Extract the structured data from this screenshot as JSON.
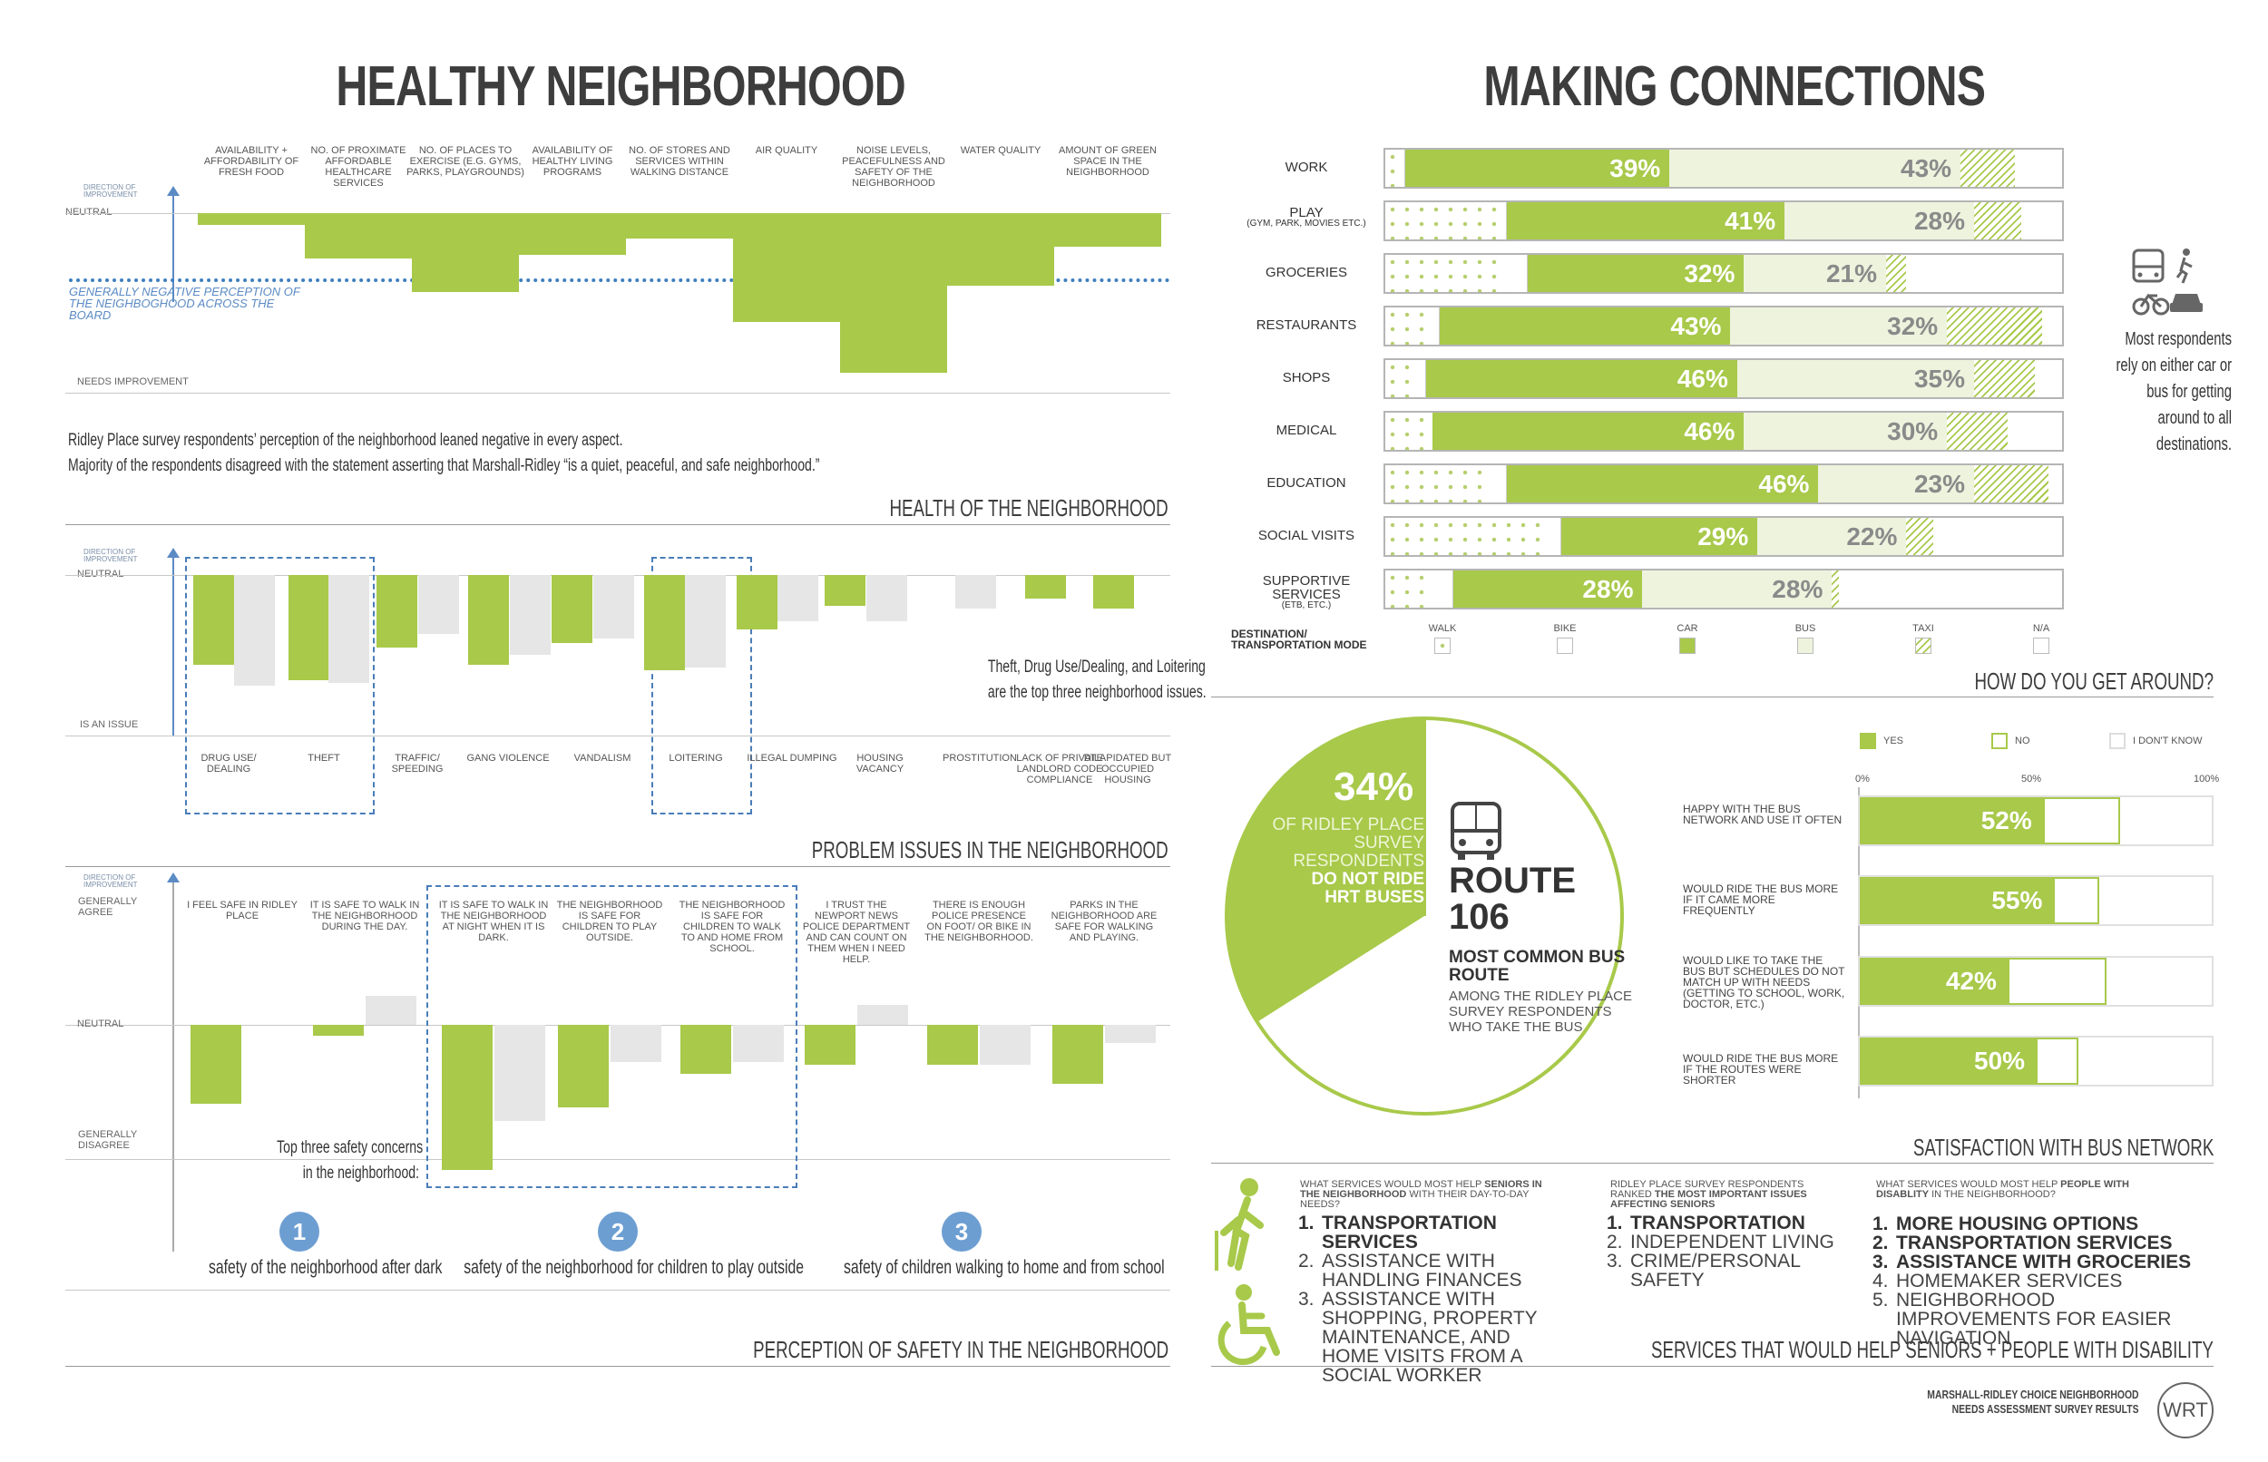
{
  "titles": {
    "left": "HEALTHY NEIGHBORHOOD",
    "right": "MAKING CONNECTIONS"
  },
  "health": {
    "direction": "DIRECTION OF IMPROVEMENT",
    "neutral": "NEUTRAL",
    "needs": "NEEDS IMPROVEMENT",
    "board": "GENERALLY NEGATIVE PERCEPTION OF THE NEIGHBOGHOOD ACROSS THE BOARD",
    "note1": "Ridley Place survey respondents’ perception of the neighborhood leaned negative in every aspect.",
    "note2": "Majority of the respondents disagreed with the statement asserting that Marshall-Ridley “is a quiet, peaceful, and safe neighborhood.”",
    "section": "HEALTH OF THE NEIGHBORHOOD"
  },
  "problems": {
    "direction": "DIRECTION OF IMPROVEMENT",
    "neutral": "NEUTRAL",
    "issue": "IS AN ISSUE",
    "note1": "Theft, Drug Use/Dealing, and Loitering",
    "note2": "are the top three neighborhood issues.",
    "section": "PROBLEM ISSUES IN THE NEIGHBORHOOD"
  },
  "safety": {
    "direction": "DIRECTION OF IMPROVEMENT",
    "agree": "GENERALLY AGREE",
    "neutral": "NEUTRAL",
    "disagree": "GENERALLY DISAGREE",
    "top1": "Top three safety concerns",
    "top2": "in the neighborhood:",
    "concerns": [
      {
        "num": "1",
        "text": "safety of the neighborhood after dark"
      },
      {
        "num": "2",
        "text": "safety of the neighborhood for children to play outside"
      },
      {
        "num": "3",
        "text": "safety of children walking to home and from school"
      }
    ],
    "section": "PERCEPTION OF SAFETY IN THE NEIGHBORHOOD"
  },
  "transport": {
    "legend_title": "DESTINATION/ TRANSPORTATION MODE",
    "modes": [
      "WALK",
      "BIKE",
      "CAR",
      "BUS",
      "TAXI",
      "N/A"
    ],
    "side_note": "Most respondents rely on either car or bus for getting around to all destinations.",
    "section": "HOW DO YOU GET AROUND?",
    "sub_play": "(GYM, PARK, MOVIES ETC.)",
    "sub_support": "(ETB, etc.)"
  },
  "route": {
    "pct": "34%",
    "pct_text1": "OF RIDLEY PLACE SURVEY RESPONDENTS",
    "pct_text2": "DO NOT RIDE HRT BUSES",
    "name1": "ROUTE",
    "name2": "106",
    "desc_bold": "MOST COMMON BUS ROUTE",
    "desc": "AMONG THE RIDLEY PLACE SURVEY RESPONDENTS WHO TAKE THE BUS"
  },
  "bus": {
    "legend": [
      "YES",
      "NO",
      "I DON'T KNOW"
    ],
    "axis": [
      "0%",
      "50%",
      "100%"
    ],
    "section": "SATISFACTION WITH BUS NETWORK"
  },
  "services": {
    "col1_head_pre": "WHAT SERVICES WOULD MOST HELP",
    "col1_head_bold": "SENIORS IN THE NEIGHBORHOOD",
    "col1_head_post": "WITH THEIR DAY-TO-DAY NEEDS?",
    "col1": [
      "TRANSPORTATION SERVICES",
      "ASSISTANCE WITH HANDLING FINANCES",
      "ASSISTANCE WITH SHOPPING, PROPERTY MAINTENANCE, AND HOME VISITS FROM A SOCIAL WORKER"
    ],
    "col2_head_pre": "RIDLEY PLACE SURVEY RESPONDENTS RANKED",
    "col2_head_bold": "THE MOST IMPORTANT ISSUES AFFECTING SENIORS",
    "col2": [
      "TRANSPORTATION",
      "INDEPENDENT LIVING",
      "CRIME/PERSONAL SAFETY"
    ],
    "col3_head_pre": "WHAT SERVICES WOULD MOST HELP",
    "col3_head_bold": "PEOPLE WITH DISABLITY",
    "col3_head_post": "IN THE NEIGHBORHOOD?",
    "col3": [
      "MORE HOUSING OPTIONS",
      "TRANSPORTATION SERVICES",
      "ASSISTANCE WITH GROCERIES",
      "HOMEMAKER SERVICES",
      "NEIGHBORHOOD IMPROVEMENTS FOR EASIER NAVIGATION"
    ],
    "section": "SERVICES THAT WOULD HELP SENIORS + PEOPLE WITH DISABILITY"
  },
  "footer": {
    "line1": "MARSHALL-RIDLEY CHOICE NEIGHBORHOOD",
    "line2": "NEEDS ASSESSMENT SURVEY RESULTS",
    "logo": "WRT"
  },
  "chart_data": [
    {
      "type": "bar",
      "title": "HEALTH OF THE NEIGHBORHOOD",
      "categories": [
        "AVAILABILITY + AFFORDABILITY OF FRESH FOOD",
        "NO. OF PROXIMATE AFFORDABLE HEALTHCARE SERVICES",
        "NO. OF PLACES TO EXERCISE (E.G. GYMS, PARKS, PLAYGROUNDS)",
        "AVAILABILITY OF HEALTHY LIVING PROGRAMS",
        "NO. OF STORES AND SERVICES WITHIN WALKING DISTANCE",
        "AIR QUALITY",
        "NOISE LEVELS, PEACEFULNESS AND SAFETY OF THE NEIGHBORHOOD",
        "WATER QUALITY",
        "AMOUNT OF GREEN SPACE IN THE NEIGHBORHOOD"
      ],
      "values": [
        -0.07,
        -0.27,
        -0.47,
        -0.25,
        -0.15,
        -0.65,
        -0.95,
        -0.43,
        -0.2
      ],
      "ylim": [
        -1,
        0
      ]
    },
    {
      "type": "bar",
      "title": "PROBLEM ISSUES IN THE NEIGHBORHOOD",
      "categories": [
        "DRUG USE/ DEALING",
        "THEFT",
        "TRAFFIC/ SPEEDING",
        "GANG VIOLENCE",
        "VANDALISM",
        "LOITERING",
        "ILLEGAL DUMPING",
        "HOUSING VACANCY",
        "PROSTITUTION",
        "LACK OF PRIVATE LANDLORD CODE COMPLIANCE",
        "DILAPIDATED BUT OCCUPIED HOUSING"
      ],
      "series": [
        {
          "values": [
            -0.58,
            -0.68,
            -0.47,
            -0.58,
            -0.44,
            -0.62,
            -0.35,
            -0.2,
            0,
            -0.15,
            -0.22
          ]
        },
        {
          "values": [
            -0.72,
            -0.7,
            -0.38,
            -0.52,
            -0.41,
            -0.6,
            -0.3,
            -0.3,
            -0.22,
            0,
            0
          ]
        }
      ],
      "ylim": [
        -1,
        0
      ]
    },
    {
      "type": "bar",
      "title": "PERCEPTION OF SAFETY IN THE NEIGHBORHOOD",
      "categories": [
        "I FEEL SAFE IN RIDLEY PLACE",
        "IT IS SAFE TO WALK IN THE NEIGHBORHOOD DURING THE DAY.",
        "IT IS SAFE TO WALK IN THE NEIGHBORHOOD AT NIGHT WHEN IT IS DARK.",
        "THE NEIGHBORHOOD IS SAFE FOR CHILDREN TO PLAY OUTSIDE.",
        "THE NEIGHBORHOOD IS SAFE FOR CHILDREN TO WALK TO AND HOME FROM SCHOOL.",
        "I TRUST THE NEWPORT NEWS POLICE DEPARTMENT AND CAN COUNT ON THEM WHEN I NEED HELP.",
        "THERE IS ENOUGH POLICE PRESENCE ON FOOT/ OR BIKE IN THE NEIGHBORHOOD.",
        "PARKS IN THE NEIGHBORHOOD ARE SAFE FOR WALKING AND PLAYING."
      ],
      "series": [
        {
          "values": [
            -0.6,
            -0.08,
            -1.1,
            -0.63,
            -0.37,
            -0.3,
            -0.3,
            -0.45
          ]
        },
        {
          "values": [
            0,
            0.22,
            -0.73,
            -0.28,
            -0.28,
            0.15,
            -0.3,
            -0.14
          ]
        }
      ],
      "ylim": [
        -1.1,
        1
      ]
    },
    {
      "type": "bar",
      "title": "HOW DO YOU GET AROUND?",
      "categories": [
        "WORK",
        "PLAY",
        "GROCERIES",
        "RESTAURANTS",
        "SHOPS",
        "MEDICAL",
        "EDUCATION",
        "SOCIAL VISITS",
        "SUPPORTIVE SERVICES"
      ],
      "series": [
        {
          "name": "WALK",
          "values": [
            2,
            17,
            18,
            6,
            5,
            7,
            15,
            24,
            7
          ]
        },
        {
          "name": "BIKE",
          "values": [
            1,
            1,
            3,
            2,
            1,
            0,
            3,
            2,
            3
          ]
        },
        {
          "name": "CAR",
          "values": [
            39,
            41,
            32,
            43,
            46,
            46,
            46,
            29,
            28
          ]
        },
        {
          "name": "BUS",
          "values": [
            43,
            28,
            21,
            32,
            35,
            30,
            23,
            22,
            28
          ]
        },
        {
          "name": "TAXI",
          "values": [
            8,
            7,
            3,
            14,
            9,
            9,
            11,
            4,
            1
          ]
        },
        {
          "name": "N/A",
          "values": [
            7,
            6,
            23,
            3,
            4,
            8,
            2,
            19,
            33
          ]
        }
      ],
      "ylim": [
        0,
        100
      ]
    },
    {
      "type": "bar",
      "title": "SATISFACTION WITH BUS NETWORK",
      "categories": [
        "HAPPY WITH THE BUS NETWORK AND USE IT OFTEN",
        "WOULD RIDE THE BUS MORE IF IT CAME MORE FREQUENTLY",
        "WOULD LIKE TO TAKE THE BUS BUT SCHEDULES DO NOT MATCH UP WITH NEEDS (GETTING TO SCHOOL, WORK, DOCTOR, ETC.)",
        "WOULD RIDE THE BUS MORE IF THE ROUTES WERE SHORTER"
      ],
      "series": [
        {
          "name": "YES",
          "values": [
            52,
            55,
            42,
            50
          ]
        },
        {
          "name": "NO",
          "values": [
            22,
            13,
            28,
            12
          ]
        },
        {
          "name": "I DON'T KNOW",
          "values": [
            26,
            32,
            30,
            38
          ]
        }
      ],
      "ylim": [
        0,
        100
      ]
    },
    {
      "type": "pie",
      "categories": [
        "DO NOT RIDE HRT BUSES",
        "OTHER"
      ],
      "values": [
        34,
        66
      ]
    }
  ]
}
